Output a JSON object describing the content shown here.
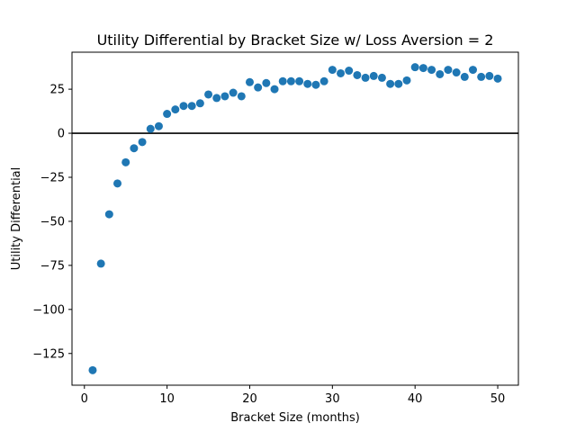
{
  "chart_data": {
    "type": "scatter",
    "title": "Utility Differential by Bracket Size w/ Loss Aversion = 2",
    "xlabel": "Bracket Size (months)",
    "ylabel": "Utility Differential",
    "xlim": [
      -1.5,
      52.5
    ],
    "ylim": [
      -143,
      46
    ],
    "xticks": [
      0,
      10,
      20,
      30,
      40,
      50
    ],
    "yticks": [
      25,
      0,
      -25,
      -50,
      -75,
      -100,
      -125
    ],
    "ytick_labels": [
      "25",
      "0",
      "−25",
      "−50",
      "−75",
      "−100",
      "−125"
    ],
    "reference_line_y": 0,
    "marker_color": "#1f77b4",
    "grid": false,
    "x": [
      1,
      2,
      3,
      4,
      5,
      6,
      7,
      8,
      9,
      10,
      11,
      12,
      13,
      14,
      15,
      16,
      17,
      18,
      19,
      20,
      21,
      22,
      23,
      24,
      25,
      26,
      27,
      28,
      29,
      30,
      31,
      32,
      33,
      34,
      35,
      36,
      37,
      38,
      39,
      40,
      41,
      42,
      43,
      44,
      45,
      46,
      47,
      48,
      49,
      50
    ],
    "y": [
      -134.5,
      -74,
      -46,
      -28.5,
      -16.5,
      -8.5,
      -5,
      2.5,
      4,
      11,
      13.5,
      15.5,
      15.5,
      17,
      22,
      20,
      21,
      23,
      21,
      29,
      26,
      28.5,
      25,
      29.5,
      29.5,
      29.5,
      28,
      27.5,
      29.5,
      36,
      34,
      35.5,
      33,
      31.5,
      32.5,
      31.5,
      28,
      28,
      30,
      37.5,
      37,
      36,
      33.5,
      36,
      34.5,
      32,
      36,
      32,
      32.5,
      31
    ]
  }
}
